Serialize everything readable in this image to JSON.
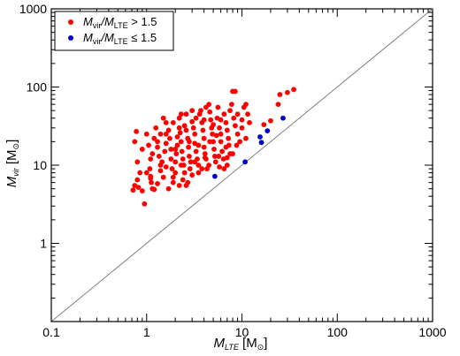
{
  "chart_data": {
    "type": "scatter",
    "x_scale": "log",
    "y_scale": "log",
    "xlim": [
      0.1,
      1000
    ],
    "ylim": [
      0.1,
      1000
    ],
    "x_ticks": [
      "0.1",
      "1",
      "10",
      "100",
      "1000"
    ],
    "y_ticks": [
      "1",
      "10",
      "100",
      "1000"
    ],
    "xlabel": {
      "main": "M",
      "sub": "LTE",
      "unit_open": " [M",
      "unit_sub": "⊙",
      "unit_close": "]"
    },
    "ylabel": {
      "main": "M",
      "sub": "vir",
      "unit_open": " [M",
      "unit_sub": "⊙",
      "unit_close": "]"
    },
    "reference_line": {
      "x": [
        0.1,
        1000
      ],
      "y": [
        0.1,
        1000
      ],
      "color": "#808080"
    },
    "legend_position": "top-left",
    "legend": [
      {
        "color": "#ff0000",
        "prefix": "M",
        "sub1": "vir",
        "mid": "/M",
        "sub2": "LTE",
        "suffix": " > 1.5"
      },
      {
        "color": "#0000cc",
        "prefix": "M",
        "sub1": "vir",
        "mid": "/M",
        "sub2": "LTE",
        "suffix": " ≤ 1.5"
      }
    ],
    "series": [
      {
        "color": "#ff0000",
        "points": [
          [
            0.78,
            27
          ],
          [
            0.75,
            20
          ],
          [
            0.8,
            11
          ],
          [
            0.85,
            8
          ],
          [
            0.8,
            6.5
          ],
          [
            0.75,
            5.5
          ],
          [
            0.72,
            4.8
          ],
          [
            0.82,
            5.2
          ],
          [
            0.95,
            3.2
          ],
          [
            0.9,
            4.7
          ],
          [
            0.9,
            16
          ],
          [
            1.0,
            25
          ],
          [
            1.05,
            18
          ],
          [
            1.1,
            12
          ],
          [
            1.08,
            9
          ],
          [
            1.1,
            7.2
          ],
          [
            1.12,
            6
          ],
          [
            1.15,
            5
          ],
          [
            1.2,
            4.9
          ],
          [
            1.0,
            8
          ],
          [
            1.15,
            14
          ],
          [
            1.2,
            22
          ],
          [
            1.25,
            30
          ],
          [
            1.3,
            20
          ],
          [
            1.3,
            17
          ],
          [
            1.35,
            13
          ],
          [
            1.4,
            10
          ],
          [
            1.4,
            8.5
          ],
          [
            1.5,
            7
          ],
          [
            1.45,
            11
          ],
          [
            1.55,
            15
          ],
          [
            1.6,
            19
          ],
          [
            1.6,
            25
          ],
          [
            1.6,
            35
          ],
          [
            1.5,
            40
          ],
          [
            1.7,
            28
          ],
          [
            1.75,
            22
          ],
          [
            1.8,
            16
          ],
          [
            1.8,
            12
          ],
          [
            1.85,
            9
          ],
          [
            1.9,
            7
          ],
          [
            1.9,
            6
          ],
          [
            2.0,
            8
          ],
          [
            2.0,
            11
          ],
          [
            2.05,
            14
          ],
          [
            2.1,
            18
          ],
          [
            2.1,
            23
          ],
          [
            2.2,
            30
          ],
          [
            2.2,
            40
          ],
          [
            2.3,
            45
          ],
          [
            2.25,
            26
          ],
          [
            2.3,
            20
          ],
          [
            2.35,
            15
          ],
          [
            2.4,
            12
          ],
          [
            2.45,
            10
          ],
          [
            2.5,
            8
          ],
          [
            2.4,
            6.5
          ],
          [
            2.6,
            5.5
          ],
          [
            2.5,
            32
          ],
          [
            2.6,
            28
          ],
          [
            2.7,
            22
          ],
          [
            2.75,
            17
          ],
          [
            2.8,
            13
          ],
          [
            2.9,
            11
          ],
          [
            2.85,
            9
          ],
          [
            3.0,
            7.5
          ],
          [
            3.0,
            36
          ],
          [
            3.1,
            30
          ],
          [
            3.2,
            25
          ],
          [
            3.2,
            19
          ],
          [
            3.3,
            15
          ],
          [
            3.4,
            12
          ],
          [
            3.5,
            10
          ],
          [
            3.5,
            8
          ],
          [
            3.3,
            40
          ],
          [
            3.6,
            45
          ],
          [
            3.7,
            50
          ],
          [
            3.8,
            35
          ],
          [
            3.9,
            28
          ],
          [
            4.0,
            22
          ],
          [
            4.0,
            17
          ],
          [
            4.1,
            14
          ],
          [
            4.2,
            12
          ],
          [
            4.3,
            9
          ],
          [
            4.2,
            55
          ],
          [
            4.5,
            60
          ],
          [
            4.6,
            48
          ],
          [
            4.7,
            38
          ],
          [
            4.8,
            30
          ],
          [
            4.9,
            25
          ],
          [
            5.0,
            20
          ],
          [
            5.1,
            16
          ],
          [
            5.2,
            13
          ],
          [
            5.3,
            11
          ],
          [
            5.5,
            40
          ],
          [
            5.6,
            55
          ],
          [
            5.8,
            30
          ],
          [
            6.0,
            25
          ],
          [
            6.0,
            20
          ],
          [
            6.2,
            15
          ],
          [
            6.4,
            12
          ],
          [
            6.5,
            45
          ],
          [
            6.8,
            35
          ],
          [
            7.0,
            28
          ],
          [
            7.2,
            22
          ],
          [
            7.3,
            18
          ],
          [
            7.5,
            14
          ],
          [
            7.8,
            60
          ],
          [
            8.0,
            88
          ],
          [
            8.5,
            88
          ],
          [
            8.2,
            40
          ],
          [
            8.5,
            32
          ],
          [
            9.0,
            25
          ],
          [
            9.5,
            20
          ],
          [
            10.0,
            30
          ],
          [
            10.5,
            55
          ],
          [
            11.0,
            60
          ],
          [
            11.5,
            45
          ],
          [
            11.0,
            22
          ],
          [
            12.0,
            35
          ],
          [
            8.0,
            14
          ],
          [
            7.0,
            10
          ],
          [
            6.5,
            9
          ],
          [
            5.8,
            9.5
          ],
          [
            4.5,
            10
          ],
          [
            3.8,
            9
          ],
          [
            2.7,
            6
          ],
          [
            2.2,
            5.5
          ],
          [
            1.7,
            5
          ],
          [
            1.3,
            5.8
          ],
          [
            1.1,
            6.8
          ],
          [
            1.9,
            35
          ],
          [
            2.6,
            45
          ],
          [
            3.0,
            50
          ],
          [
            4.0,
            38
          ],
          [
            5.0,
            33
          ],
          [
            6.0,
            38
          ],
          [
            7.5,
            50
          ],
          [
            9.0,
            45
          ],
          [
            10.0,
            38
          ],
          [
            17.0,
            33
          ],
          [
            20.0,
            37
          ],
          [
            24.0,
            60
          ],
          [
            25.0,
            80
          ],
          [
            30.0,
            85
          ],
          [
            35.0,
            93
          ],
          [
            1.4,
            25
          ],
          [
            2.0,
            16
          ],
          [
            2.8,
            20
          ],
          [
            3.5,
            18
          ],
          [
            4.6,
            20
          ],
          [
            5.4,
            24
          ],
          [
            6.8,
            17
          ],
          [
            8.8,
            18
          ],
          [
            1.6,
            9.5
          ],
          [
            2.3,
            10
          ],
          [
            3.2,
            11
          ],
          [
            4.1,
            12.5
          ],
          [
            5.7,
            13
          ],
          [
            7.0,
            12.5
          ]
        ]
      },
      {
        "color": "#0000cc",
        "points": [
          [
            5.2,
            7.2
          ],
          [
            10.8,
            11
          ],
          [
            15.5,
            23
          ],
          [
            16.0,
            19.5
          ],
          [
            18.5,
            27.5
          ],
          [
            27.0,
            40
          ]
        ]
      }
    ]
  }
}
